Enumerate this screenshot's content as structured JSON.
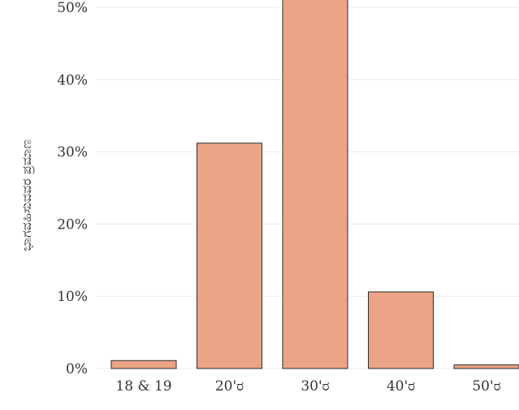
{
  "chart_data": {
    "type": "bar",
    "title": "",
    "xlabel": "",
    "ylabel": "ಭಾಗವಹಿಸುವವರ ಪ್ರಮಾಣ",
    "categories": [
      "18 & 19",
      "20'ರ",
      "30'ರ",
      "40'ರ",
      "50'ರ"
    ],
    "values": [
      1.1,
      31.2,
      54.0,
      10.6,
      0.5
    ],
    "ylim": [
      0,
      50
    ],
    "yticks": [
      0,
      10,
      20,
      30,
      40,
      50
    ],
    "ytick_labels": [
      "0%",
      "10%",
      "20%",
      "30%",
      "40%",
      "50%"
    ],
    "grid": true,
    "bar_color": "#eba586",
    "bar_edge_color": "#2b2b2b"
  }
}
